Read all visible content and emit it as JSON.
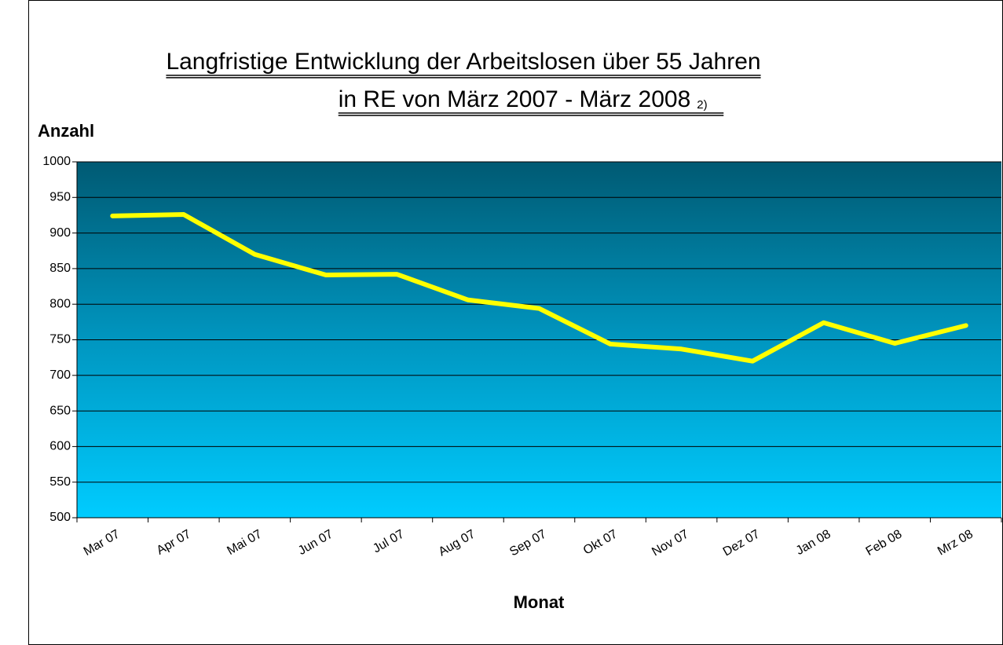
{
  "chart_data": {
    "type": "line",
    "title": [
      "Langfristige Entwicklung der Arbeitslosen über 55 Jahren",
      "in RE von März 2007 - März 2008"
    ],
    "title_note": "2)",
    "y_label": "Anzahl",
    "x_label": "Monat",
    "categories": [
      "Mar 07",
      "Apr 07",
      "Mai 07",
      "Jun 07",
      "Jul 07",
      "Aug 07",
      "Sep 07",
      "Okt 07",
      "Nov 07",
      "Dez 07",
      "Jan 08",
      "Feb 08",
      "Mrz 08"
    ],
    "values": [
      924,
      926,
      870,
      841,
      842,
      806,
      794,
      744,
      737,
      720,
      774,
      745,
      770
    ],
    "color": "#ffff00",
    "ylim": [
      500,
      1000
    ],
    "yticks": [
      500,
      550,
      600,
      650,
      700,
      750,
      800,
      850,
      900,
      950,
      1000
    ],
    "grid": true
  }
}
